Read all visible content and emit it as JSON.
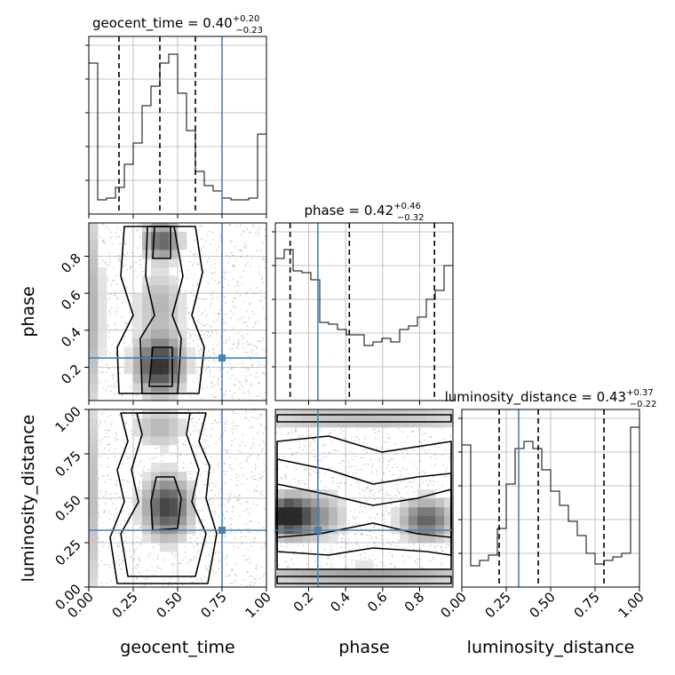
{
  "colors": {
    "truth": "#4682b4",
    "hist": "#000000",
    "grid": "#b0b0b0",
    "scatter": "#9a9a9a"
  },
  "params": [
    {
      "name": "geocent_time",
      "median": "0.40",
      "plus": "+0.20",
      "minus": "−0.23",
      "q": [
        0.17,
        0.4,
        0.6
      ],
      "truth": 0.75
    },
    {
      "name": "phase",
      "median": "0.42",
      "plus": "+0.46",
      "minus": "−0.32",
      "q": [
        0.1,
        0.42,
        0.88
      ],
      "truth": 0.25
    },
    {
      "name": "luminosity_distance",
      "median": "0.43",
      "plus": "+0.37",
      "minus": "−0.22",
      "q": [
        0.21,
        0.43,
        0.8
      ],
      "truth": 0.32
    }
  ],
  "chart_data": {
    "type": "corner",
    "variables": [
      "geocent_time",
      "phase",
      "luminosity_distance"
    ],
    "titles": [
      {
        "prefix": "geocent_time = 0.40",
        "sup": "+0.20",
        "sub": "−0.23"
      },
      {
        "prefix": "phase = 0.42",
        "sup": "+0.46",
        "sub": "−0.32"
      },
      {
        "prefix": "luminosity_distance = 0.43",
        "sup": "+0.37",
        "sub": "−0.22"
      }
    ],
    "axis_labels": {
      "x": [
        "geocent_time",
        "phase",
        "luminosity_distance"
      ],
      "y": [
        "phase",
        "luminosity_distance"
      ]
    },
    "ranges": [
      [
        0,
        1
      ],
      [
        0.02,
        0.98
      ],
      [
        0,
        1
      ]
    ],
    "ticks": {
      "geocent_time": [
        "0.00",
        "0.25",
        "0.50",
        "0.75",
        "1.00"
      ],
      "phase": [
        "0.2",
        "0.4",
        "0.6",
        "0.8"
      ],
      "luminosity_distance": [
        "0.00",
        "0.25",
        "0.50",
        "0.75",
        "1.00"
      ]
    },
    "histograms": [
      {
        "param": "geocent_time",
        "bins": 20,
        "values": [
          0.85,
          0.08,
          0.09,
          0.15,
          0.28,
          0.4,
          0.61,
          0.72,
          0.85,
          0.9,
          0.68,
          0.47,
          0.24,
          0.16,
          0.13,
          0.09,
          0.08,
          0.08,
          0.09,
          0.45
        ]
      },
      {
        "param": "phase",
        "bins": 20,
        "values": [
          0.8,
          0.85,
          0.73,
          0.72,
          0.68,
          0.44,
          0.43,
          0.4,
          0.37,
          0.37,
          0.31,
          0.33,
          0.35,
          0.33,
          0.4,
          0.42,
          0.47,
          0.57,
          0.62,
          0.76
        ]
      },
      {
        "param": "luminosity_distance",
        "bins": 20,
        "values": [
          0.8,
          0.12,
          0.15,
          0.18,
          0.33,
          0.58,
          0.78,
          0.82,
          0.78,
          0.66,
          0.54,
          0.46,
          0.37,
          0.29,
          0.19,
          0.13,
          0.15,
          0.17,
          0.19,
          0.9
        ]
      }
    ],
    "grid": true
  }
}
